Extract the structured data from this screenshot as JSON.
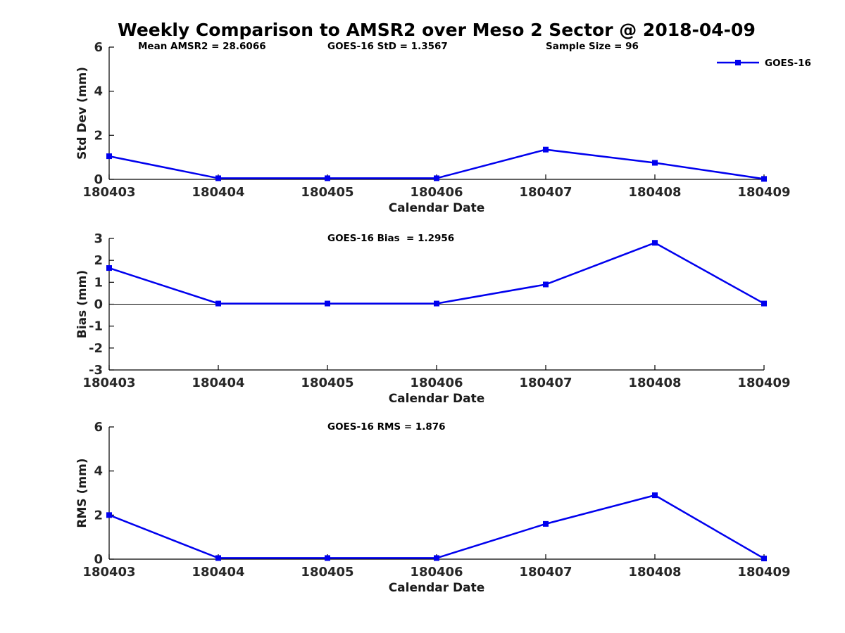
{
  "title": "Weekly Comparison to AMSR2 over Meso 2 Sector @ 2018-04-09",
  "legend": {
    "label": "GOES-16",
    "position": "top-right"
  },
  "colors": {
    "line": "#0000EE",
    "axis": "#000000",
    "tick_label": "#262626",
    "zero_line": "#000000",
    "background": "#ffffff"
  },
  "chart_data": [
    {
      "type": "line",
      "categories": [
        "180403",
        "180404",
        "180405",
        "180406",
        "180407",
        "180408",
        "180409"
      ],
      "series": [
        {
          "name": "GOES-16",
          "values": [
            1.05,
            0.05,
            0.05,
            0.05,
            1.35,
            0.75,
            0.02
          ]
        }
      ],
      "xlabel": "Calendar Date",
      "ylabel": "Std Dev (mm)",
      "ylim": [
        0,
        6
      ],
      "yticks": [
        0,
        2,
        4,
        6
      ],
      "annotations": [
        "Mean AMSR2 = 28.6066",
        "GOES-16 StD = 1.3567",
        "Sample Size = 96"
      ],
      "legend": true,
      "zero_line": false,
      "grid": false,
      "marker": "square"
    },
    {
      "type": "line",
      "categories": [
        "180403",
        "180404",
        "180405",
        "180406",
        "180407",
        "180408",
        "180409"
      ],
      "series": [
        {
          "name": "GOES-16",
          "values": [
            1.65,
            0.03,
            0.03,
            0.03,
            0.9,
            2.8,
            0.03
          ]
        }
      ],
      "xlabel": "Calendar Date",
      "ylabel": "Bias (mm)",
      "ylim": [
        -3,
        3
      ],
      "yticks": [
        -3,
        -2,
        -1,
        0,
        1,
        2,
        3
      ],
      "annotations": [
        "GOES-16 Bias  = 1.2956"
      ],
      "legend": false,
      "zero_line": true,
      "grid": false,
      "marker": "square"
    },
    {
      "type": "line",
      "categories": [
        "180403",
        "180404",
        "180405",
        "180406",
        "180407",
        "180408",
        "180409"
      ],
      "series": [
        {
          "name": "GOES-16",
          "values": [
            2.0,
            0.05,
            0.05,
            0.05,
            1.6,
            2.9,
            0.03
          ]
        }
      ],
      "xlabel": "Calendar Date",
      "ylabel": "RMS (mm)",
      "ylim": [
        0,
        6
      ],
      "yticks": [
        0,
        2,
        4,
        6
      ],
      "annotations": [
        "GOES-16 RMS = 1.876"
      ],
      "legend": false,
      "zero_line": false,
      "grid": false,
      "marker": "square"
    }
  ]
}
